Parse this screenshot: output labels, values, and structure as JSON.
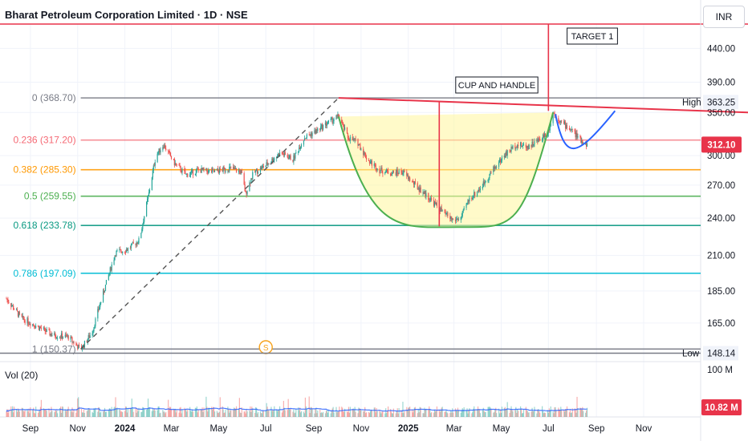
{
  "header": {
    "title": "Bharat Petroleum Corporation Limited · 1D · NSE",
    "currency": "INR"
  },
  "volume_pane": {
    "label": "Vol (20)",
    "scale_top": "100 M",
    "current_value": "10.82 M",
    "current_color": "#e8344a"
  },
  "colors": {
    "fib_0": "#787b86",
    "fib_0236": "#f23645",
    "fib_0382": "#ff9800",
    "fib_05": "#4caf50",
    "fib_0618": "#089981",
    "fib_0786": "#00bcd4",
    "fib_1": "#787b86",
    "trend": "#e8344a",
    "cup": "#4caf50",
    "handle": "#2962ff",
    "cup_fill": "#fff59d",
    "up_candle": "#26a69a",
    "down_candle": "#ef5350",
    "price_badge": "#e8344a",
    "volume_ma": "#2962ff"
  },
  "chart_data": {
    "type": "candlestick",
    "symbol": "Bharat Petroleum Corporation Limited",
    "interval": "1D",
    "exchange": "NSE",
    "currency": "INR",
    "y_axis": {
      "ticks": [
        440.0,
        390.0,
        350.0,
        300.0,
        270.0,
        240.0,
        210.0,
        185.0,
        165.0
      ],
      "scale": "log",
      "ylim": [
        145,
        480
      ]
    },
    "x_axis": {
      "labels": [
        "Sep",
        "Nov",
        "2024",
        "Mar",
        "May",
        "Jul",
        "Sep",
        "Nov",
        "2025",
        "Mar",
        "May",
        "Jul",
        "Sep",
        "Nov"
      ],
      "bold_labels": [
        "2024",
        "2025"
      ],
      "range": [
        "2023-08",
        "2025-11"
      ]
    },
    "fib_levels": [
      {
        "ratio": "0",
        "price": 368.7,
        "label": "0 (368.70)"
      },
      {
        "ratio": "0.236",
        "price": 317.2,
        "label": "0.236 (317.20)"
      },
      {
        "ratio": "0.382",
        "price": 285.3,
        "label": "0.382 (285.30)"
      },
      {
        "ratio": "0.5",
        "price": 259.55,
        "label": "0.5 (259.55)"
      },
      {
        "ratio": "0.618",
        "price": 233.78,
        "label": "0.618 (233.78)"
      },
      {
        "ratio": "0.786",
        "price": 197.09,
        "label": "0.786 (197.09)"
      },
      {
        "ratio": "1",
        "price": 150.37,
        "label": "1 (150.37)"
      }
    ],
    "price_labels": {
      "high": {
        "label": "High",
        "value": "363.25"
      },
      "low": {
        "label": "Low",
        "value": "148.14"
      },
      "last": {
        "value": "312.10"
      }
    },
    "target_level": 480,
    "annotations": {
      "pattern": "CUP AND HANDLE",
      "target": "TARGET 1",
      "event_marker": "S"
    },
    "price_path": [
      [
        "2023-08-01",
        180
      ],
      [
        "2023-08-20",
        168
      ],
      [
        "2023-09-10",
        163
      ],
      [
        "2023-09-30",
        158
      ],
      [
        "2023-10-20",
        157
      ],
      [
        "2023-11-05",
        150
      ],
      [
        "2023-11-20",
        160
      ],
      [
        "2023-12-05",
        185
      ],
      [
        "2023-12-20",
        212
      ],
      [
        "2024-01-05",
        215
      ],
      [
        "2024-01-20",
        222
      ],
      [
        "2024-02-01",
        262
      ],
      [
        "2024-02-10",
        300
      ],
      [
        "2024-02-20",
        312
      ],
      [
        "2024-03-05",
        292
      ],
      [
        "2024-03-20",
        280
      ],
      [
        "2024-04-05",
        285
      ],
      [
        "2024-04-25",
        283
      ],
      [
        "2024-05-15",
        287
      ],
      [
        "2024-05-30",
        283
      ],
      [
        "2024-06-05",
        262
      ],
      [
        "2024-06-15",
        282
      ],
      [
        "2024-07-01",
        290
      ],
      [
        "2024-07-20",
        303
      ],
      [
        "2024-08-05",
        296
      ],
      [
        "2024-08-20",
        320
      ],
      [
        "2024-09-05",
        328
      ],
      [
        "2024-09-20",
        338
      ],
      [
        "2024-10-03",
        345
      ],
      [
        "2024-10-15",
        320
      ],
      [
        "2024-10-28",
        314
      ],
      [
        "2024-11-10",
        295
      ],
      [
        "2024-11-25",
        285
      ],
      [
        "2024-12-10",
        282
      ],
      [
        "2024-12-25",
        283
      ],
      [
        "2025-01-10",
        270
      ],
      [
        "2025-01-25",
        260
      ],
      [
        "2025-02-05",
        252
      ],
      [
        "2025-02-15",
        245
      ],
      [
        "2025-02-28",
        238
      ],
      [
        "2025-03-10",
        240
      ],
      [
        "2025-03-20",
        256
      ],
      [
        "2025-04-05",
        268
      ],
      [
        "2025-04-20",
        285
      ],
      [
        "2025-05-05",
        300
      ],
      [
        "2025-05-20",
        312
      ],
      [
        "2025-06-05",
        310
      ],
      [
        "2025-06-20",
        318
      ],
      [
        "2025-07-01",
        328
      ],
      [
        "2025-07-07",
        350
      ],
      [
        "2025-07-20",
        336
      ],
      [
        "2025-08-01",
        328
      ],
      [
        "2025-08-10",
        318
      ],
      [
        "2025-08-20",
        312
      ]
    ],
    "volume": {
      "moving_average_period": 20,
      "last": "10.82 M",
      "scale_max": "100 M"
    }
  }
}
